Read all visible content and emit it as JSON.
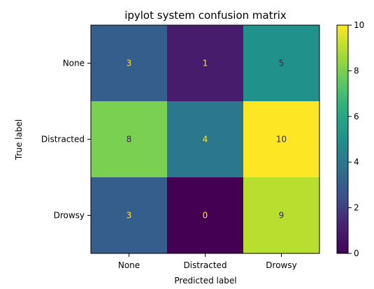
{
  "chart_data": {
    "type": "heatmap",
    "title": "ipylot system confusion matrix",
    "xlabel": "Predicted label",
    "ylabel": "True label",
    "x_categories": [
      "None",
      "Distracted",
      "Drowsy"
    ],
    "y_categories": [
      "None",
      "Distracted",
      "Drowsy"
    ],
    "values": [
      [
        3,
        1,
        5
      ],
      [
        8,
        4,
        10
      ],
      [
        3,
        0,
        9
      ]
    ],
    "colorbar": {
      "min": 0,
      "max": 10,
      "ticks": [
        0,
        2,
        4,
        6,
        8,
        10
      ],
      "colormap": "viridis"
    },
    "grid": false
  }
}
